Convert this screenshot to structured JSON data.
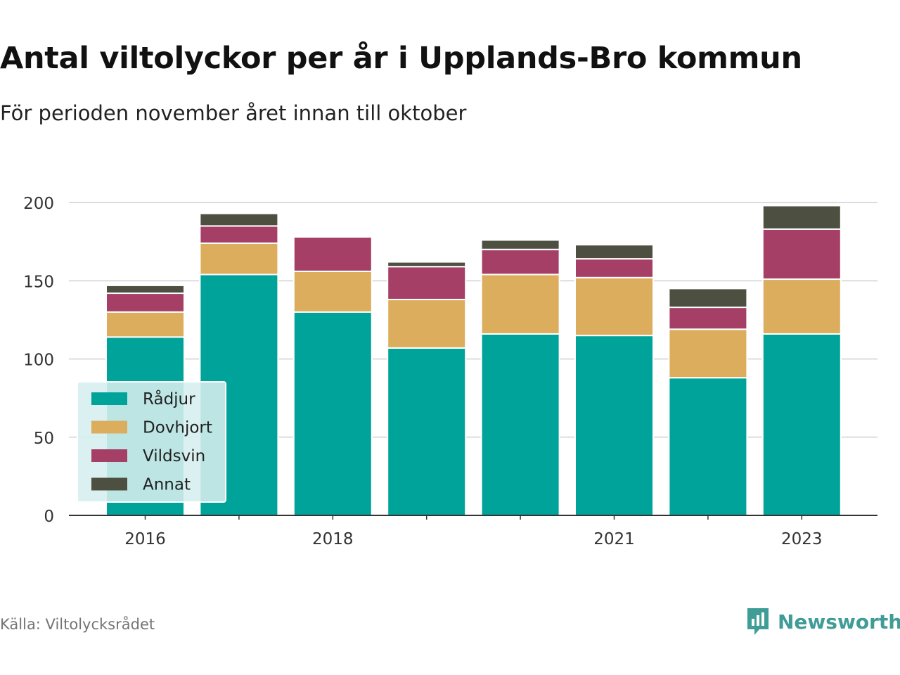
{
  "title": "Antal viltolyckor per år i Upplands-Bro kommun",
  "subtitle": "För perioden november året innan till oktober",
  "source": "Källa: Viltolycksrådet",
  "brand": {
    "name": "Newsworthy",
    "icon": "newsworthy-logo-icon",
    "color": "#3f9c96"
  },
  "chart_data": {
    "type": "bar",
    "stacked": true,
    "categories": [
      "2016",
      "2017",
      "2018",
      "2019",
      "2020",
      "2021",
      "2022",
      "2023"
    ],
    "x_tick_labels": [
      "2016",
      "2018",
      "2021",
      "2023"
    ],
    "y_ticks": [
      "0",
      "50",
      "100",
      "150",
      "200"
    ],
    "ylim": [
      0,
      200
    ],
    "grid": true,
    "legend_position": "bottom-left",
    "series": [
      {
        "name": "Rådjur",
        "color": "#00a39a",
        "values": [
          114,
          154,
          130,
          107,
          116,
          115,
          88,
          116
        ]
      },
      {
        "name": "Dovhjort",
        "color": "#dbad5d",
        "values": [
          16,
          20,
          26,
          31,
          38,
          37,
          31,
          35
        ]
      },
      {
        "name": "Vildsvin",
        "color": "#a53f66",
        "values": [
          12,
          11,
          22,
          21,
          16,
          12,
          14,
          32
        ]
      },
      {
        "name": "Annat",
        "color": "#4d4f40",
        "values": [
          5,
          8,
          0,
          3,
          6,
          9,
          12,
          15
        ]
      }
    ]
  }
}
